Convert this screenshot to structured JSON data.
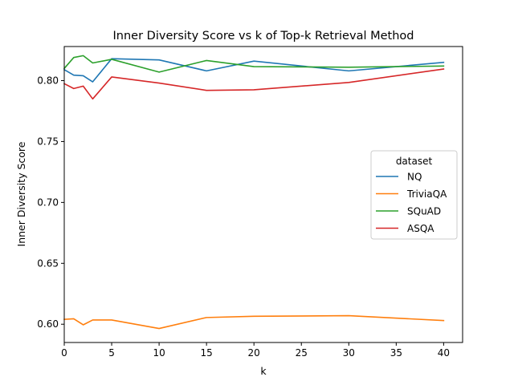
{
  "chart_data": {
    "type": "line",
    "title": "Inner Diversity Score vs k of Top-k Retrieval Method",
    "xlabel": "k",
    "ylabel": "Inner Diversity Score",
    "xlim": [
      0,
      42
    ],
    "ylim": [
      0.585,
      0.828
    ],
    "xticks": [
      0,
      5,
      10,
      15,
      20,
      25,
      30,
      35,
      40
    ],
    "xtick_labels": [
      "0",
      "5",
      "10",
      "15",
      "20",
      "25",
      "30",
      "35",
      "40"
    ],
    "yticks": [
      0.6,
      0.65,
      0.7,
      0.75,
      0.8
    ],
    "ytick_labels": [
      "0.60",
      "0.65",
      "0.70",
      "0.75",
      "0.80"
    ],
    "grid": false,
    "legend": {
      "title": "dataset",
      "placement": "center-right"
    },
    "x": [
      0,
      1,
      2,
      3,
      5,
      10,
      15,
      20,
      30,
      40
    ],
    "series": [
      {
        "name": "NQ",
        "color": "#1f77b4",
        "values": [
          0.809,
          0.8045,
          0.804,
          0.799,
          0.818,
          0.817,
          0.808,
          0.816,
          0.808,
          0.815
        ]
      },
      {
        "name": "TriviaQA",
        "color": "#ff7f0e",
        "values": [
          0.604,
          0.6045,
          0.5995,
          0.6035,
          0.6035,
          0.5965,
          0.6055,
          0.6065,
          0.607,
          0.603
        ]
      },
      {
        "name": "SQuAD",
        "color": "#2ca02c",
        "values": [
          0.81,
          0.819,
          0.8205,
          0.8145,
          0.8175,
          0.807,
          0.8165,
          0.8115,
          0.811,
          0.812
        ]
      },
      {
        "name": "ASQA",
        "color": "#d62728",
        "values": [
          0.7975,
          0.7935,
          0.7955,
          0.785,
          0.803,
          0.798,
          0.792,
          0.7925,
          0.7985,
          0.8095
        ]
      }
    ]
  }
}
